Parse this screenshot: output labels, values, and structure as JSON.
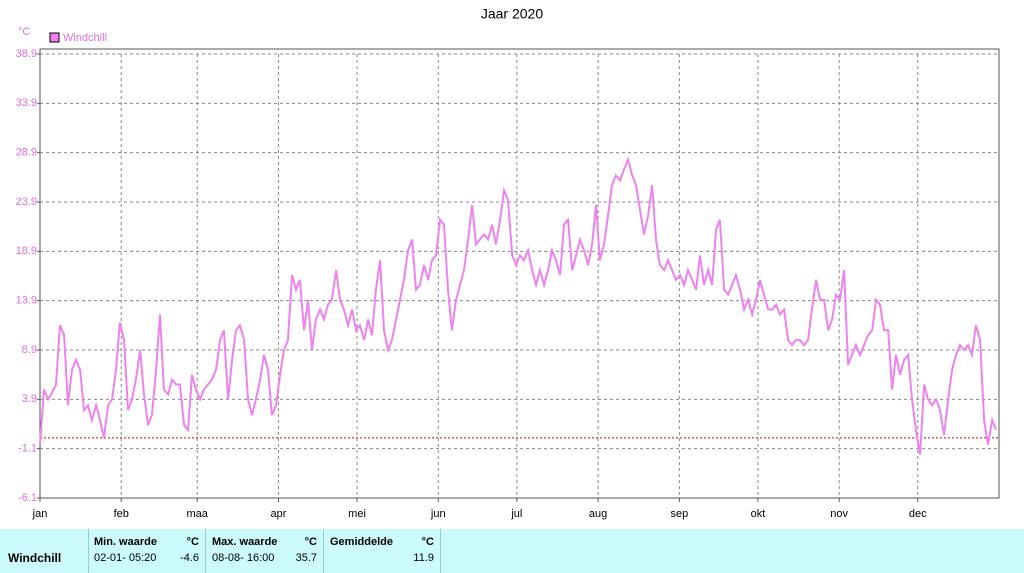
{
  "chart_data": {
    "type": "line",
    "title": "Jaar 2020",
    "y_unit": "°C",
    "xlim": [
      0,
      366
    ],
    "xticks": [
      {
        "value": 0,
        "label": "jan"
      },
      {
        "value": 31,
        "label": "feb"
      },
      {
        "value": 60,
        "label": "maa"
      },
      {
        "value": 91,
        "label": "apr"
      },
      {
        "value": 121,
        "label": "mei"
      },
      {
        "value": 152,
        "label": "jun"
      },
      {
        "value": 182,
        "label": "jul"
      },
      {
        "value": 213,
        "label": "aug"
      },
      {
        "value": 244,
        "label": "sep"
      },
      {
        "value": 274,
        "label": "okt"
      },
      {
        "value": 305,
        "label": "nov"
      },
      {
        "value": 335,
        "label": "dec"
      }
    ],
    "ylim": [
      -6.1,
      38.9
    ],
    "yticks": [
      -6.1,
      -1.1,
      3.9,
      8.9,
      13.9,
      18.9,
      23.9,
      28.9,
      33.9,
      38.9
    ],
    "grid": true,
    "legend": "top-left",
    "reference_line": {
      "value": 0,
      "color": "#e00000"
    },
    "x": [
      0,
      1.5,
      3.1,
      4.6,
      6.1,
      7.6,
      9.2,
      10.7,
      12.2,
      13.7,
      15.3,
      16.8,
      18.3,
      19.8,
      21.4,
      22.9,
      24.4,
      26.0,
      27.5,
      29.0,
      30.5,
      32.1,
      33.6,
      35.1,
      36.6,
      38.2,
      39.7,
      41.2,
      42.7,
      44.3,
      45.8,
      47.3,
      48.9,
      50.4,
      51.9,
      53.4,
      55.0,
      56.5,
      58.0,
      59.5,
      61.1,
      62.6,
      64.1,
      65.6,
      67.2,
      68.7,
      70.2,
      71.8,
      73.3,
      74.8,
      76.3,
      77.9,
      79.4,
      80.9,
      82.4,
      84.0,
      85.5,
      87.0,
      88.5,
      90.1,
      91.6,
      93.1,
      94.6,
      96.2,
      97.7,
      99.2,
      100.8,
      102.3,
      103.8,
      105.3,
      106.9,
      108.4,
      109.9,
      111.4,
      113.0,
      114.5,
      116.0,
      117.6,
      119.1,
      120.6,
      122.1,
      123.7,
      125.2,
      126.7,
      128.2,
      129.8,
      131.3,
      132.8,
      134.3,
      135.9,
      137.4,
      138.9,
      140.5,
      142.0,
      143.5,
      145.0,
      146.6,
      148.1,
      149.6,
      151.1,
      152.7,
      154.2,
      155.7,
      157.2,
      158.8,
      160.3,
      161.8,
      163.4,
      164.9,
      166.4,
      167.9,
      169.5,
      171.0,
      172.5,
      174.0,
      175.6,
      177.1,
      178.6,
      180.2,
      181.7,
      183.2,
      184.7,
      186.3,
      187.8,
      189.3,
      190.8,
      192.4,
      193.9,
      195.4,
      196.9,
      198.5,
      200.0,
      201.5,
      203.1,
      204.6,
      206.1,
      207.6,
      209.2,
      210.7,
      212.2,
      213.7,
      215.3,
      216.8,
      218.3,
      219.8,
      221.4,
      222.9,
      224.4,
      226.0,
      227.5,
      229.0,
      230.5,
      232.1,
      233.6,
      235.1,
      236.6,
      238.2,
      239.7,
      241.2,
      242.7,
      244.3,
      245.8,
      247.3,
      248.9,
      250.4,
      251.9,
      253.4,
      255.0,
      256.5,
      258.0,
      259.5,
      261.1,
      262.6,
      264.1,
      265.6,
      267.2,
      268.7,
      270.2,
      271.8,
      273.3,
      274.8,
      276.3,
      277.9,
      279.4,
      280.9,
      282.4,
      284.0,
      285.5,
      287.0,
      288.5,
      290.1,
      291.6,
      293.1,
      294.6,
      296.2,
      297.7,
      299.2,
      300.8,
      302.3,
      303.8,
      305.3,
      306.9,
      308.4,
      309.9,
      311.4,
      313.0,
      314.5,
      316.0,
      317.6,
      319.1,
      320.6,
      322.1,
      323.7,
      325.2,
      326.7,
      328.2,
      329.8,
      331.3,
      332.8,
      334.3,
      335.9,
      337.4,
      338.9,
      340.5,
      342.0,
      343.5,
      345.0,
      346.6,
      348.1,
      349.6,
      351.1,
      352.7,
      354.2,
      355.7,
      357.2,
      358.8,
      360.3,
      361.8,
      363.4,
      364.9
    ],
    "series": [
      {
        "name": "Windchill",
        "color": "#ee82ee",
        "values": [
          -0.7,
          4.9,
          3.9,
          4.6,
          5.4,
          11.4,
          10.4,
          3.3,
          6.9,
          7.9,
          6.9,
          2.8,
          3.3,
          1.8,
          3.3,
          1.8,
          0,
          3.3,
          3.9,
          6.9,
          11.7,
          9.9,
          2.8,
          3.9,
          5.9,
          8.9,
          4.4,
          1.3,
          2.3,
          6.9,
          12.5,
          4.9,
          4.4,
          5.9,
          5.4,
          5.4,
          1.3,
          0.8,
          6.4,
          4.9,
          3.9,
          4.9,
          5.4,
          5.9,
          6.9,
          9.9,
          10.9,
          3.9,
          7.9,
          10.9,
          11.4,
          9.9,
          3.9,
          2.3,
          3.9,
          5.9,
          8.4,
          6.9,
          2.3,
          3.3,
          6.4,
          8.9,
          9.9,
          16.5,
          15.0,
          16.0,
          10.9,
          14.0,
          8.9,
          12.0,
          13.0,
          12.0,
          13.5,
          14.0,
          17.0,
          14.0,
          13.0,
          11.4,
          13.0,
          10.9,
          11.4,
          9.9,
          12.0,
          10.4,
          15.0,
          18.0,
          10.9,
          8.9,
          9.9,
          12.0,
          14.0,
          16.0,
          19.0,
          20.1,
          15.0,
          15.5,
          17.5,
          16.0,
          18.0,
          18.5,
          22.1,
          21.6,
          15.0,
          10.9,
          14.0,
          15.5,
          17.0,
          20.1,
          23.6,
          19.6,
          20.1,
          20.6,
          20.1,
          21.6,
          19.6,
          22.1,
          25.1,
          24.1,
          18.5,
          17.5,
          18.5,
          18.0,
          19.0,
          17.0,
          15.5,
          17.0,
          15.5,
          17.0,
          19.0,
          18.0,
          16.5,
          21.6,
          22.1,
          17.0,
          18.5,
          20.1,
          19.0,
          17.5,
          19.6,
          23.6,
          18.0,
          19.6,
          22.6,
          25.6,
          26.6,
          26.1,
          27.2,
          28.2,
          26.6,
          25.6,
          23.1,
          20.6,
          22.6,
          25.6,
          20.1,
          17.5,
          17.0,
          18.0,
          17.0,
          16.0,
          16.5,
          15.5,
          17.0,
          16.0,
          15.0,
          18.5,
          15.5,
          17.0,
          15.5,
          21.1,
          22.1,
          15.0,
          14.5,
          15.5,
          16.5,
          15.0,
          13.0,
          14.0,
          12.5,
          14.0,
          16.0,
          14.5,
          13.0,
          13.0,
          13.5,
          12.5,
          13.0,
          9.9,
          9.4,
          9.9,
          9.9,
          9.4,
          9.9,
          13.0,
          16.0,
          14.0,
          14.0,
          10.9,
          12.0,
          14.5,
          14.0,
          17.0,
          7.4,
          8.4,
          9.4,
          8.4,
          9.4,
          10.4,
          10.9,
          14.0,
          13.5,
          10.9,
          10.9,
          4.9,
          8.4,
          6.4,
          7.9,
          8.4,
          3.9,
          0.8,
          -1.7,
          5.4,
          3.9,
          3.3,
          3.9,
          2.8,
          0.3,
          3.9,
          6.9,
          8.4,
          9.4,
          8.9,
          9.4,
          8.4,
          11.4,
          9.9,
          1.8,
          -0.7,
          1.8,
          0.8
        ]
      }
    ]
  },
  "stats": {
    "row_label": "Windchill",
    "min": {
      "header": "Min. waarde",
      "unit": "°C",
      "time": "02-01- 05:20",
      "value": -4.6
    },
    "max": {
      "header": "Max. waarde",
      "unit": "°C",
      "time": "08-08- 16:00",
      "value": 35.7
    },
    "avg": {
      "header": "Gemiddelde",
      "unit": "°C",
      "value": 11.9
    }
  }
}
